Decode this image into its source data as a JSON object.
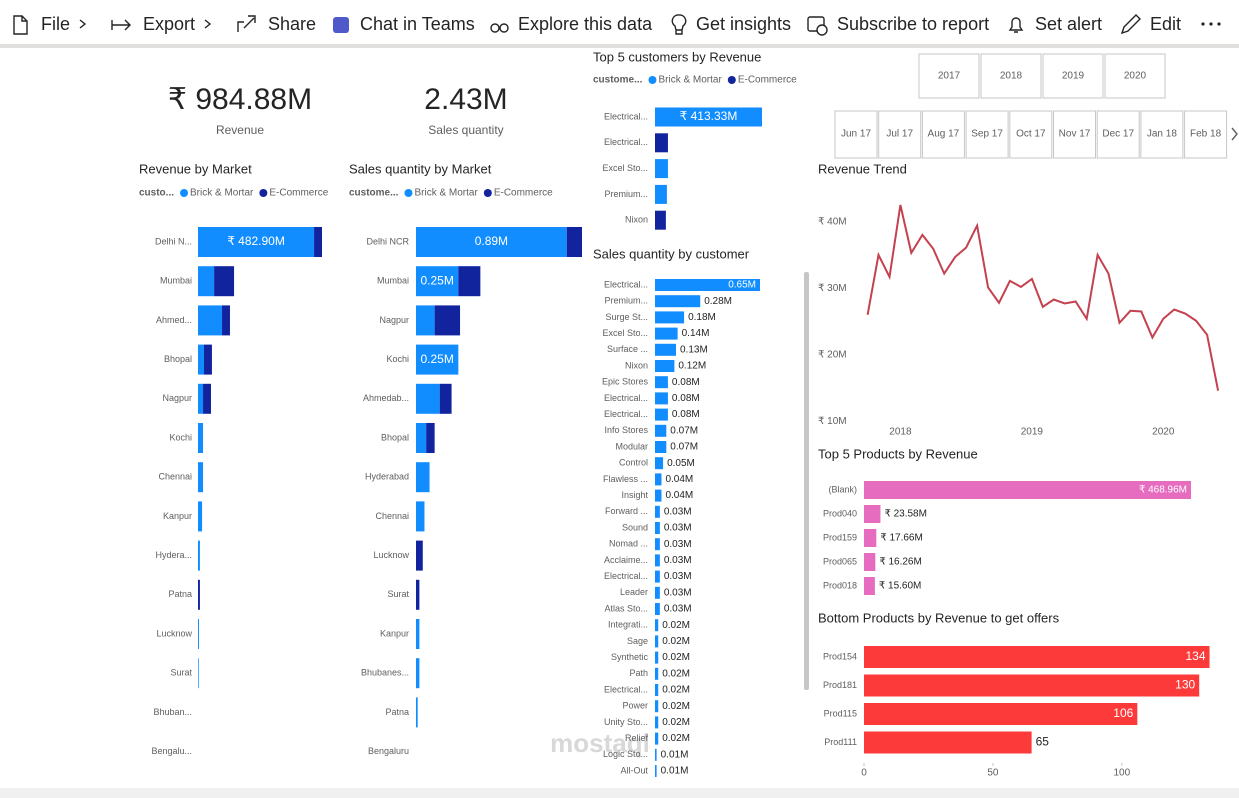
{
  "toolbar": [
    "File",
    "Export",
    "Share",
    "Chat in Teams",
    "Explore this data",
    "Get insights",
    "Subscribe to report",
    "Set alert",
    "Edit"
  ],
  "kpis": [
    {
      "value": "₹ 984.88M",
      "label": "Revenue"
    },
    {
      "value": "2.43M",
      "label": "Sales quantity"
    }
  ],
  "slicers": {
    "years": [
      "2017",
      "2018",
      "2019",
      "2020"
    ],
    "months": [
      "Jun 17",
      "Jul 17",
      "Aug 17",
      "Sep 17",
      "Oct 17",
      "Nov 17",
      "Dec 17",
      "Jan 18",
      "Feb 18"
    ]
  },
  "watermark": "mostaql",
  "chart_data": [
    {
      "type": "bar",
      "title": "Revenue by Market",
      "legend_title": "custo...",
      "categories": [
        "Delhi N...",
        "Mumbai",
        "Ahmed...",
        "Bhopal",
        "Nagpur",
        "Kochi",
        "Chennai",
        "Kanpur",
        "Hydera...",
        "Patna",
        "Lucknow",
        "Surat",
        "Bhuban...",
        "Bengalu..."
      ],
      "series": [
        {
          "name": "Brick & Mortar",
          "color": "#118dff",
          "values": [
            482.9,
            67,
            100,
            25,
            21,
            21,
            21,
            17,
            8,
            0,
            4,
            3,
            0,
            0
          ],
          "value_labels": [
            "₹ 482.90M",
            null,
            null,
            null,
            null,
            null,
            null,
            null,
            null,
            null,
            null,
            null,
            null,
            null
          ]
        },
        {
          "name": "E-Commerce",
          "color": "#12239e",
          "values": [
            33,
            83,
            33,
            33,
            33,
            0,
            0,
            0,
            0,
            8,
            0,
            0,
            0,
            0
          ]
        }
      ]
    },
    {
      "type": "bar",
      "title": "Sales quantity by Market",
      "legend_title": "custome...",
      "categories": [
        "Delhi NCR",
        "Mumbai",
        "Nagpur",
        "Kochi",
        "Ahmedab...",
        "Bhopal",
        "Hyderabad",
        "Chennai",
        "Lucknow",
        "Surat",
        "Kanpur",
        "Bhubanes...",
        "Patna",
        "Bengaluru"
      ],
      "series": [
        {
          "name": "Brick & Mortar",
          "color": "#118dff",
          "values": [
            0.89,
            0.25,
            0.11,
            0.25,
            0.14,
            0.06,
            0.08,
            0.05,
            0,
            0,
            0.02,
            0.02,
            0.01,
            0
          ],
          "value_labels": [
            "0.89M",
            "0.25M",
            null,
            "0.25M",
            null,
            null,
            null,
            null,
            null,
            null,
            null,
            null,
            null,
            null
          ]
        },
        {
          "name": "E-Commerce",
          "color": "#12239e",
          "values": [
            0.09,
            0.13,
            0.15,
            0,
            0.07,
            0.05,
            0,
            0,
            0.04,
            0.02,
            0,
            0,
            0,
            0
          ]
        }
      ]
    },
    {
      "type": "bar",
      "title": "Top 5 customers by Revenue",
      "legend_title": "custome...",
      "categories": [
        "Electrical...",
        "Electrical...",
        "Excel Sto...",
        "Premium...",
        "Nixon"
      ],
      "series": [
        {
          "name": "Brick & Mortar",
          "color": "#118dff",
          "values": [
            413.33,
            0,
            50,
            46,
            0
          ],
          "value_labels": [
            "₹ 413.33M",
            null,
            null,
            null,
            null
          ]
        },
        {
          "name": "E-Commerce",
          "color": "#12239e",
          "values": [
            0,
            50,
            0,
            0,
            42
          ]
        }
      ]
    },
    {
      "type": "bar",
      "title": "Sales quantity by customer",
      "color": "#118dff",
      "categories": [
        "Electrical...",
        "Premium...",
        "Surge St...",
        "Excel Sto...",
        "Surface ...",
        "Nixon",
        "Epic Stores",
        "Electrical...",
        "Electrical...",
        "Info Stores",
        "Modular",
        "Control",
        "Flawless ...",
        "Insight",
        "Forward ...",
        "Sound",
        "Nomad ...",
        "Acclaime...",
        "Electrical...",
        "Leader",
        "Atlas Sto...",
        "Integrati...",
        "Sage",
        "Synthetic",
        "Path",
        "Electrical...",
        "Power",
        "Unity Sto...",
        "Relief",
        "Logic Sto...",
        "All-Out"
      ],
      "values": [
        0.65,
        0.28,
        0.18,
        0.14,
        0.13,
        0.12,
        0.08,
        0.08,
        0.08,
        0.07,
        0.07,
        0.05,
        0.04,
        0.04,
        0.03,
        0.03,
        0.03,
        0.03,
        0.03,
        0.03,
        0.03,
        0.02,
        0.02,
        0.02,
        0.02,
        0.02,
        0.02,
        0.02,
        0.02,
        0.01,
        0.01
      ],
      "value_labels": [
        "0.65M",
        "0.28M",
        "0.18M",
        "0.14M",
        "0.13M",
        "0.12M",
        "0.08M",
        "0.08M",
        "0.08M",
        "0.07M",
        "0.07M",
        "0.05M",
        "0.04M",
        "0.04M",
        "0.03M",
        "0.03M",
        "0.03M",
        "0.03M",
        "0.03M",
        "0.03M",
        "0.03M",
        "0.02M",
        "0.02M",
        "0.02M",
        "0.02M",
        "0.02M",
        "0.02M",
        "0.02M",
        "0.02M",
        "0.01M",
        "0.01M"
      ]
    },
    {
      "type": "line",
      "title": "Revenue Trend",
      "color": "#c4414f",
      "x": [
        2017.75,
        2017.833,
        2017.917,
        2018.0,
        2018.083,
        2018.167,
        2018.25,
        2018.333,
        2018.417,
        2018.5,
        2018.583,
        2018.667,
        2018.75,
        2018.833,
        2018.917,
        2019.0,
        2019.083,
        2019.167,
        2019.25,
        2019.333,
        2019.417,
        2019.5,
        2019.583,
        2019.667,
        2019.75,
        2019.833,
        2019.917,
        2020.0,
        2020.083,
        2020.167,
        2020.25,
        2020.333,
        2020.417
      ],
      "values": [
        26.0,
        35.0,
        31.7,
        42.5,
        35.3,
        38.0,
        35.9,
        32.2,
        34.7,
        36.1,
        39.4,
        30.1,
        27.8,
        31.1,
        30.2,
        31.4,
        27.2,
        28.3,
        27.7,
        28.0,
        25.4,
        35.0,
        32.2,
        24.8,
        26.6,
        26.5,
        22.6,
        25.4,
        26.8,
        26.2,
        25.1,
        23.0,
        14.6
      ],
      "xlim": [
        2017.7,
        2020.5
      ],
      "xticks": [
        2018,
        2019,
        2020
      ],
      "ylim": [
        8.7,
        44
      ],
      "yticks": [
        {
          "value": 10,
          "label": "₹ 10M"
        },
        {
          "value": 20,
          "label": "₹ 20M"
        },
        {
          "value": 30,
          "label": "₹ 30M"
        },
        {
          "value": 40,
          "label": "₹ 40M"
        }
      ],
      "grid": false
    },
    {
      "type": "bar",
      "title": "Top 5 Products by Revenue",
      "color": "#e66cc0",
      "categories": [
        "(Blank)",
        "Prod040",
        "Prod159",
        "Prod065",
        "Prod018"
      ],
      "values": [
        468.96,
        23.58,
        17.66,
        16.26,
        15.6
      ],
      "value_labels": [
        "₹ 468.96M",
        "₹ 23.58M",
        "₹ 17.66M",
        "₹ 16.26M",
        "₹ 15.60M"
      ]
    },
    {
      "type": "bar",
      "title": "Bottom Products by Revenue to get offers",
      "color": "#fd3a3a",
      "categories": [
        "Prod154",
        "Prod181",
        "Prod115",
        "Prod111"
      ],
      "values": [
        134,
        130,
        106,
        65
      ],
      "xlim": [
        0,
        140
      ],
      "xticks": [
        0,
        50,
        100
      ]
    }
  ]
}
